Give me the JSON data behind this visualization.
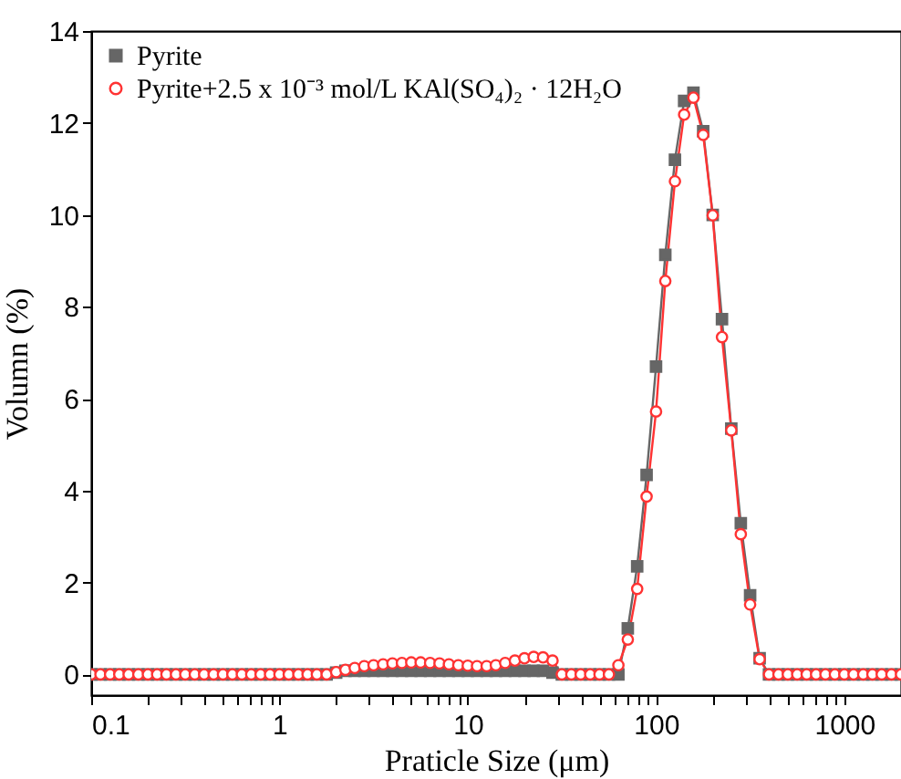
{
  "chart_data": {
    "type": "line",
    "xlabel": "Praticle Size (μm)",
    "ylabel": "Volumn (%)",
    "log": "x",
    "xlim": [
      0.1,
      2000
    ],
    "ylim": [
      -0.45,
      14
    ],
    "xticks": [
      0.1,
      {
        "value": 0.2,
        "label": null
      },
      {
        "value": 0.3,
        "label": null
      },
      {
        "value": 0.4,
        "label": null
      },
      {
        "value": 0.5,
        "label": null
      },
      {
        "value": 0.6,
        "label": null
      },
      {
        "value": 0.7,
        "label": null
      },
      {
        "value": 0.8,
        "label": null
      },
      {
        "value": 0.9,
        "label": null
      },
      1,
      {
        "value": 2,
        "label": null
      },
      {
        "value": 3,
        "label": null
      },
      {
        "value": 4,
        "label": null
      },
      {
        "value": 5,
        "label": null
      },
      {
        "value": 6,
        "label": null
      },
      {
        "value": 7,
        "label": null
      },
      {
        "value": 8,
        "label": null
      },
      {
        "value": 9,
        "label": null
      },
      10,
      {
        "value": 20,
        "label": null
      },
      {
        "value": 30,
        "label": null
      },
      {
        "value": 40,
        "label": null
      },
      {
        "value": 50,
        "label": null
      },
      {
        "value": 60,
        "label": null
      },
      {
        "value": 70,
        "label": null
      },
      {
        "value": 80,
        "label": null
      },
      {
        "value": 90,
        "label": null
      },
      100,
      {
        "value": 200,
        "label": null
      },
      {
        "value": 300,
        "label": null
      },
      {
        "value": 400,
        "label": null
      },
      {
        "value": 500,
        "label": null
      },
      {
        "value": 600,
        "label": null
      },
      {
        "value": 700,
        "label": null
      },
      {
        "value": 800,
        "label": null
      },
      {
        "value": 900,
        "label": null
      },
      1000,
      {
        "value": 2000,
        "label": null
      }
    ],
    "yticks": [
      0,
      2,
      4,
      6,
      8,
      10,
      12,
      14
    ],
    "x": [
      0.1,
      0.112,
      0.126,
      0.141,
      0.158,
      0.178,
      0.2,
      0.224,
      0.251,
      0.282,
      0.316,
      0.355,
      0.398,
      0.447,
      0.501,
      0.562,
      0.631,
      0.708,
      0.794,
      0.891,
      1,
      1.12,
      1.26,
      1.41,
      1.58,
      1.78,
      2,
      2.24,
      2.51,
      2.82,
      3.16,
      3.55,
      3.98,
      4.47,
      5.01,
      5.62,
      6.31,
      7.08,
      7.94,
      8.91,
      10,
      11.2,
      12.6,
      14.1,
      15.8,
      17.8,
      20,
      22.4,
      25.1,
      28.2,
      31.6,
      35.5,
      39.8,
      44.7,
      50.1,
      56.2,
      63.1,
      70.8,
      79.4,
      89.1,
      100,
      112,
      126,
      141,
      158,
      178,
      200,
      224,
      251,
      282,
      316,
      355,
      398,
      447,
      501,
      562,
      631,
      708,
      794,
      891,
      1000,
      1120,
      1260,
      1410,
      1580,
      1780,
      2000
    ],
    "legend": "top left",
    "grid": false,
    "line_style": "solid",
    "series": [
      {
        "name": "Pyrite",
        "color": "#666666",
        "marker": "square",
        "values": [
          0,
          0,
          0,
          0,
          0,
          0,
          0,
          0,
          0,
          0,
          0,
          0,
          0,
          0,
          0,
          0,
          0,
          0,
          0,
          0,
          0,
          0,
          0,
          0,
          0,
          0,
          0.04,
          0.08,
          0.08,
          0.08,
          0.08,
          0.08,
          0.08,
          0.08,
          0.08,
          0.08,
          0.08,
          0.08,
          0.08,
          0.08,
          0.08,
          0.08,
          0.08,
          0.08,
          0.08,
          0.08,
          0.08,
          0.08,
          0.08,
          0.04,
          0,
          0,
          0,
          0,
          0,
          0,
          0,
          1.0,
          2.35,
          4.34,
          6.7,
          9.13,
          11.2,
          12.48,
          12.66,
          11.82,
          10.0,
          7.73,
          5.35,
          3.29,
          1.72,
          0.35,
          0,
          0,
          0,
          0,
          0,
          0,
          0,
          0,
          0,
          0,
          0,
          0,
          0,
          0,
          0
        ]
      },
      {
        "name": "Pyrite+2.5 x 10⁻³ mol/L KAl(SO₄)₂ · 12H₂O",
        "color": "#ff3333",
        "marker": "circle",
        "values": [
          0,
          0,
          0,
          0,
          0,
          0,
          0,
          0,
          0,
          0,
          0,
          0,
          0,
          0,
          0,
          0,
          0,
          0,
          0,
          0,
          0,
          0,
          0,
          0,
          0,
          0,
          0.05,
          0.1,
          0.14,
          0.18,
          0.2,
          0.22,
          0.24,
          0.25,
          0.26,
          0.26,
          0.25,
          0.24,
          0.22,
          0.2,
          0.19,
          0.18,
          0.18,
          0.2,
          0.25,
          0.3,
          0.35,
          0.38,
          0.37,
          0.3,
          0,
          0,
          0,
          0,
          0,
          0,
          0.2,
          0.76,
          1.86,
          3.87,
          5.72,
          8.56,
          10.73,
          12.18,
          12.55,
          11.74,
          9.99,
          7.34,
          5.31,
          3.05,
          1.52,
          0.33,
          0,
          0,
          0,
          0,
          0,
          0,
          0,
          0,
          0,
          0,
          0,
          0,
          0,
          0,
          0
        ]
      }
    ]
  }
}
